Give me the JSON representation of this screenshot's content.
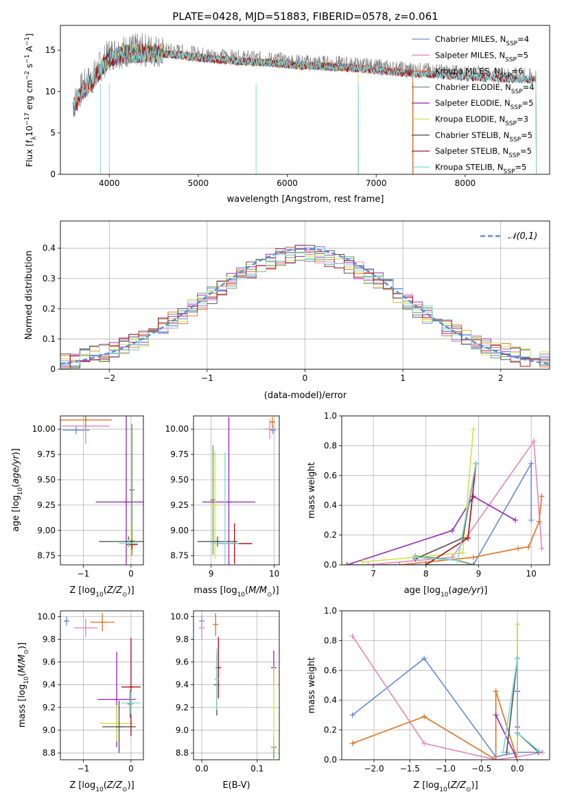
{
  "title": "PLATE=0428, MJD=51883, FIBERID=0578, z=0.061",
  "legend_spectrum": [
    {
      "label": "Chabrier MILES, N_SSP=4",
      "name": "Chabrier MILES, N",
      "sub": "SSP",
      "tail": "=4",
      "color": "#6a8fd8"
    },
    {
      "label": "Salpeter MILES, N_SSP=5",
      "name": "Salpeter MILES, N",
      "sub": "SSP",
      "tail": "=5",
      "color": "#e58bbd"
    },
    {
      "label": "Kroupa MILES, N_SSP=6",
      "name": "Kroupa MILES, N",
      "sub": "SSP",
      "tail": "=6",
      "color": "#e0772b"
    },
    {
      "label": "Chabrier ELODIE, N_SSP=4",
      "name": "Chabrier ELODIE, N",
      "sub": "SSP",
      "tail": "=4",
      "color": "#6b9a62"
    },
    {
      "label": "Salpeter ELODIE, N_SSP=5",
      "name": "Salpeter ELODIE, N",
      "sub": "SSP",
      "tail": "=5",
      "color": "#9c2fb4"
    },
    {
      "label": "Kroupa ELODIE, N_SSP=3",
      "name": "Kroupa ELODIE, N",
      "sub": "SSP",
      "tail": "=3",
      "color": "#d4e34b"
    },
    {
      "label": "Chabrier STELIB, N_SSP=5",
      "name": "Chabrier STELIB, N",
      "sub": "SSP",
      "tail": "=5",
      "color": "#555555"
    },
    {
      "label": "Salpeter STELIB, N_SSP=5",
      "name": "Salpeter STELIB, N",
      "sub": "SSP",
      "tail": "=5",
      "color": "#b0121b"
    },
    {
      "label": "Kroupa STELIB, N_SSP=5",
      "name": "Kroupa STELIB, N",
      "sub": "SSP",
      "tail": "=5",
      "color": "#7fd9d9"
    }
  ],
  "chart_data": [
    {
      "id": "spectrum",
      "type": "line",
      "xlabel": "wavelength [Angstrom, rest frame]",
      "ylabel": "Flux [f_λ 10^-17 erg cm^-2 s^-1 A^-1]",
      "xlim": [
        3450,
        8950
      ],
      "ylim": [
        0,
        18
      ],
      "xticks": [
        4000,
        5000,
        6000,
        7000,
        8000
      ],
      "yticks": [
        0,
        5,
        10,
        15
      ],
      "grid": false,
      "legend_position": "top-right",
      "data_series": {
        "name": "data",
        "color": "#808080",
        "x_range": [
          3590,
          8800
        ],
        "x": [
          3600,
          3700,
          3800,
          3900,
          4000,
          4100,
          4300,
          4500,
          4800,
          5000,
          5300,
          5600,
          5900,
          6200,
          6500,
          6800,
          7000,
          7200,
          7400,
          7600,
          8000,
          8400,
          8800
        ],
        "y": [
          8.5,
          10.5,
          11.5,
          13.0,
          14.5,
          14.8,
          15.0,
          15.0,
          14.8,
          14.5,
          14.2,
          14.0,
          13.8,
          13.5,
          13.4,
          13.2,
          13.0,
          12.8,
          12.6,
          12.5,
          12.2,
          12.0,
          11.8
        ]
      },
      "models": [
        {
          "name": "Chabrier MILES",
          "x_range": [
            3600,
            7410
          ],
          "color": "#6a8fd8"
        },
        {
          "name": "Salpeter MILES",
          "x_range": [
            3600,
            7410
          ],
          "color": "#e58bbd"
        },
        {
          "name": "Kroupa MILES",
          "x_range": [
            3600,
            7410
          ],
          "color": "#e0772b"
        },
        {
          "name": "Chabrier ELODIE",
          "x_range": [
            3900,
            6800
          ],
          "color": "#6b9a62"
        },
        {
          "name": "Salpeter ELODIE",
          "x_range": [
            3900,
            6800
          ],
          "color": "#9c2fb4"
        },
        {
          "name": "Kroupa ELODIE",
          "x_range": [
            3900,
            6800
          ],
          "color": "#d4e34b"
        },
        {
          "name": "Chabrier STELIB",
          "x_range": [
            3600,
            8800
          ],
          "color": "#555555"
        },
        {
          "name": "Salpeter STELIB",
          "x_range": [
            3600,
            8800
          ],
          "color": "#b0121b"
        },
        {
          "name": "Kroupa STELIB",
          "x_range": [
            3600,
            8800
          ],
          "color": "#7fd9d9"
        }
      ],
      "dropouts": [
        3900,
        4000,
        5650,
        6800,
        7420
      ]
    },
    {
      "id": "residuals",
      "type": "line",
      "xlabel": "(data-model)/error",
      "ylabel": "Normed distribution",
      "xlim": [
        -2.5,
        2.5
      ],
      "ylim": [
        0,
        0.49
      ],
      "xticks": [
        -2,
        -1,
        0,
        1,
        2
      ],
      "yticks": [
        0.0,
        0.1,
        0.2,
        0.3,
        0.4
      ],
      "grid": true,
      "legend": "𝒩(0,1)",
      "legend_position": "top-right",
      "gaussian": {
        "mean": 0,
        "sigma": 1,
        "color": "#5b8cd8",
        "dash": true
      },
      "histogram": {
        "bin_width": 0.1,
        "range": [
          -2.5,
          2.5
        ],
        "series_count": 9
      }
    },
    {
      "id": "age_vs_Z",
      "type": "scatter",
      "xlabel": "Z [log10(Z/Z⊙)]",
      "ylabel": "age [log10(age/yr)]",
      "xlim": [
        -1.48,
        0.26
      ],
      "ylim": [
        8.66,
        10.13
      ],
      "xticks": [
        -1,
        0
      ],
      "yticks": [
        8.75,
        9.0,
        9.25,
        9.5,
        9.75,
        10.0
      ],
      "grid": true,
      "points": [
        {
          "series": "Chabrier MILES",
          "x": -1.15,
          "y": 9.99,
          "xerr": 0.28,
          "yerr": 0.04,
          "color": "#6a8fd8"
        },
        {
          "series": "Salpeter MILES",
          "x": -0.95,
          "y": 10.03,
          "xerr": 0.5,
          "yerr": 0.18,
          "color": "#e58bbd"
        },
        {
          "series": "Kroupa MILES",
          "x": -0.95,
          "y": 10.09,
          "xerr": 0.55,
          "yerr": 0.08,
          "color": "#e0772b"
        },
        {
          "series": "Chabrier ELODIE",
          "x": 0.02,
          "y": 9.4,
          "xerr": 0.05,
          "yerr": 0.65,
          "color": "#6b9a62"
        },
        {
          "series": "Salpeter ELODIE",
          "x": -0.1,
          "y": 9.28,
          "xerr": 0.64,
          "yerr": 0.85,
          "color": "#9c2fb4"
        },
        {
          "series": "Kroupa ELODIE",
          "x": 0.0,
          "y": 8.9,
          "xerr": 0.08,
          "yerr": 0.15,
          "color": "#d4e34b"
        },
        {
          "series": "Chabrier STELIB",
          "x": -0.05,
          "y": 8.89,
          "xerr": 0.62,
          "yerr": 0.05,
          "color": "#555555"
        },
        {
          "series": "Salpeter STELIB",
          "x": 0.02,
          "y": 8.86,
          "xerr": 0.12,
          "yerr": 0.05,
          "color": "#b0121b"
        },
        {
          "series": "Kroupa STELIB",
          "x": -0.05,
          "y": 8.87,
          "xerr": 0.2,
          "yerr": 0.04,
          "color": "#7fd9d9"
        }
      ]
    },
    {
      "id": "age_vs_mass",
      "type": "scatter",
      "xlabel": "mass [log10(M/M⊙)]",
      "ylabel": "",
      "xlim": [
        8.72,
        10.08
      ],
      "ylim": [
        8.66,
        10.13
      ],
      "xticks": [
        9,
        10
      ],
      "yticks": [
        8.75,
        9.0,
        9.25,
        9.5,
        9.75,
        10.0
      ],
      "grid": true,
      "points": [
        {
          "series": "Chabrier MILES",
          "x": 9.98,
          "y": 9.99,
          "xerr": 0.03,
          "yerr": 0.04,
          "color": "#6a8fd8"
        },
        {
          "series": "Salpeter MILES",
          "x": 9.93,
          "y": 10.0,
          "xerr": 0.1,
          "yerr": 0.1,
          "color": "#e58bbd"
        },
        {
          "series": "Kroupa MILES",
          "x": 9.97,
          "y": 10.07,
          "xerr": 0.04,
          "yerr": 0.05,
          "color": "#e0772b"
        },
        {
          "series": "Chabrier ELODIE",
          "x": 9.03,
          "y": 9.3,
          "xerr": 0.02,
          "yerr": 0.54,
          "color": "#6b9a62"
        },
        {
          "series": "Salpeter ELODIE",
          "x": 9.28,
          "y": 9.28,
          "xerr": 0.42,
          "yerr": 0.84,
          "color": "#9c2fb4"
        },
        {
          "series": "Kroupa ELODIE",
          "x": 9.06,
          "y": 9.25,
          "xerr": 0.05,
          "yerr": 0.53,
          "color": "#d4e34b"
        },
        {
          "series": "Chabrier STELIB",
          "x": 9.1,
          "y": 8.89,
          "xerr": 0.32,
          "yerr": 0.05,
          "color": "#555555"
        },
        {
          "series": "Salpeter STELIB",
          "x": 9.37,
          "y": 8.87,
          "xerr": 0.28,
          "yerr": 0.2,
          "color": "#b0121b"
        },
        {
          "series": "Kroupa STELIB",
          "x": 9.22,
          "y": 8.87,
          "xerr": 0.22,
          "yerr": 0.9,
          "color": "#7fd9d9"
        }
      ]
    },
    {
      "id": "weight_vs_age",
      "type": "line",
      "xlabel": "age  [log10(age/yr)]",
      "ylabel": "mass weight",
      "xlim": [
        6.4,
        10.35
      ],
      "ylim": [
        0,
        1.0
      ],
      "xticks": [
        7,
        8,
        9,
        10
      ],
      "yticks": [
        0.0,
        0.2,
        0.4,
        0.6,
        0.8,
        1.0
      ],
      "grid": true,
      "series": [
        {
          "name": "Chabrier MILES",
          "color": "#6a8fd8",
          "x": [
            6.6,
            8.9,
            10.0,
            10.0
          ],
          "y": [
            0.0,
            0.0,
            0.68,
            0.3
          ]
        },
        {
          "name": "Salpeter MILES",
          "color": "#e58bbd",
          "x": [
            6.9,
            8.5,
            10.05,
            10.2
          ],
          "y": [
            0.0,
            0.05,
            0.83,
            0.11
          ]
        },
        {
          "name": "Kroupa MILES",
          "color": "#e0772b",
          "x": [
            7.5,
            8.9,
            9.75,
            9.95,
            10.15,
            10.2
          ],
          "y": [
            0.0,
            0.05,
            0.11,
            0.12,
            0.29,
            0.46
          ]
        },
        {
          "name": "Chabrier ELODIE",
          "color": "#6b9a62",
          "x": [
            7.8,
            8.6,
            8.9
          ],
          "y": [
            0.06,
            0.03,
            0.0
          ]
        },
        {
          "name": "Salpeter ELODIE",
          "color": "#9c2fb4",
          "x": [
            6.5,
            8.5,
            8.9,
            9.7
          ],
          "y": [
            0.0,
            0.23,
            0.46,
            0.3
          ]
        },
        {
          "name": "Kroupa ELODIE",
          "color": "#d4e34b",
          "x": [
            6.8,
            8.7,
            8.9
          ],
          "y": [
            0.02,
            0.08,
            0.91
          ]
        },
        {
          "name": "Chabrier STELIB",
          "color": "#555555",
          "x": [
            7.8,
            8.7,
            8.95
          ],
          "y": [
            0.04,
            0.18,
            0.68
          ]
        },
        {
          "name": "Salpeter STELIB",
          "color": "#b0121b",
          "x": [
            8.0,
            8.8,
            8.95
          ],
          "y": [
            0.0,
            0.18,
            0.68
          ]
        },
        {
          "name": "Kroupa STELIB",
          "color": "#7fd9d9",
          "x": [
            7.8,
            8.6,
            8.95
          ],
          "y": [
            0.05,
            0.03,
            0.68
          ]
        }
      ]
    },
    {
      "id": "mass_vs_Z",
      "type": "scatter",
      "xlabel": "Z [log10(Z/Z⊙)]",
      "ylabel": "mass [log10(M/M⊙)]",
      "xlim": [
        -1.48,
        0.26
      ],
      "ylim": [
        8.74,
        10.05
      ],
      "xticks": [
        -1,
        0
      ],
      "yticks": [
        8.8,
        9.0,
        9.2,
        9.4,
        9.6,
        9.8,
        10.0
      ],
      "grid": true,
      "points": [
        {
          "series": "Chabrier MILES",
          "x": -1.35,
          "y": 9.96,
          "xerr": 0.05,
          "yerr": 0.04,
          "color": "#6a8fd8"
        },
        {
          "series": "Salpeter MILES",
          "x": -0.95,
          "y": 9.9,
          "xerr": 0.25,
          "yerr": 0.08,
          "color": "#e58bbd"
        },
        {
          "series": "Kroupa MILES",
          "x": -0.6,
          "y": 9.95,
          "xerr": 0.25,
          "yerr": 0.08,
          "color": "#e0772b"
        },
        {
          "series": "Chabrier ELODIE",
          "x": -0.02,
          "y": 9.23,
          "xerr": 0.04,
          "yerr": 0.12,
          "color": "#6b9a62"
        },
        {
          "series": "Salpeter ELODIE",
          "x": -0.3,
          "y": 9.27,
          "xerr": 0.4,
          "yerr": 0.42,
          "color": "#9c2fb4"
        },
        {
          "series": "Kroupa ELODIE",
          "x": -0.3,
          "y": 9.06,
          "xerr": 0.35,
          "yerr": 0.16,
          "color": "#d4e34b"
        },
        {
          "series": "Chabrier STELIB",
          "x": -0.25,
          "y": 9.03,
          "xerr": 0.35,
          "yerr": 0.23,
          "color": "#555555"
        },
        {
          "series": "Salpeter STELIB",
          "x": 0.0,
          "y": 9.38,
          "xerr": 0.2,
          "yerr": 0.43,
          "color": "#b0121b"
        },
        {
          "series": "Kroupa STELIB",
          "x": 0.0,
          "y": 9.24,
          "xerr": 0.2,
          "yerr": 0.1,
          "color": "#7fd9d9"
        }
      ]
    },
    {
      "id": "mass_vs_EBV",
      "type": "scatter",
      "xlabel": "E(B-V)",
      "ylabel": "",
      "xlim": [
        -0.015,
        0.14
      ],
      "ylim": [
        8.74,
        10.05
      ],
      "xticks": [
        0.0,
        0.1
      ],
      "yticks": [
        8.8,
        9.0,
        9.2,
        9.4,
        9.6,
        9.8,
        10.0
      ],
      "grid": true,
      "points": [
        {
          "series": "Chabrier MILES",
          "x": 0.0,
          "y": 9.96,
          "xerr": 0,
          "yerr": 0.05,
          "color": "#6a8fd8"
        },
        {
          "series": "Salpeter MILES",
          "x": 0.0,
          "y": 9.9,
          "xerr": 0,
          "yerr": 0.1,
          "color": "#e58bbd"
        },
        {
          "series": "Kroupa MILES",
          "x": 0.025,
          "y": 9.93,
          "xerr": 0,
          "yerr": 0.1,
          "color": "#e0772b"
        },
        {
          "series": "Chabrier ELODIE",
          "x": 0.13,
          "y": 8.85,
          "xerr": 0,
          "yerr": 0.1,
          "color": "#6b9a62"
        },
        {
          "series": "Salpeter ELODIE",
          "x": 0.13,
          "y": 9.55,
          "xerr": 0,
          "yerr": 0.15,
          "color": "#9c2fb4"
        },
        {
          "series": "Kroupa ELODIE",
          "x": 0.13,
          "y": 9.2,
          "xerr": 0,
          "yerr": 0.36,
          "color": "#d4e34b"
        },
        {
          "series": "Chabrier STELIB",
          "x": 0.027,
          "y": 9.4,
          "xerr": 0,
          "yerr": 0.27,
          "color": "#555555"
        },
        {
          "series": "Salpeter STELIB",
          "x": 0.03,
          "y": 9.55,
          "xerr": 0,
          "yerr": 0.27,
          "color": "#b0121b"
        },
        {
          "series": "Kroupa STELIB",
          "x": 0.027,
          "y": 9.45,
          "xerr": 0,
          "yerr": 0.27,
          "color": "#7fd9d9"
        }
      ]
    },
    {
      "id": "weight_vs_Z",
      "type": "line",
      "xlabel": "Z [log10(Z/Z⊙)]",
      "ylabel": "mass weight",
      "xlim": [
        -2.45,
        0.45
      ],
      "ylim": [
        0,
        1.0
      ],
      "xticks": [
        -2.0,
        -1.5,
        -1.0,
        -0.5,
        0.0
      ],
      "yticks": [
        0.0,
        0.2,
        0.4,
        0.6,
        0.8,
        1.0
      ],
      "grid": true,
      "series": [
        {
          "name": "Chabrier MILES",
          "color": "#6a8fd8",
          "x": [
            -2.3,
            -1.3,
            -0.3,
            0.0,
            0.3
          ],
          "y": [
            0.3,
            0.68,
            0.02,
            0.05,
            0.05
          ]
        },
        {
          "name": "Salpeter MILES",
          "color": "#e58bbd",
          "x": [
            -2.3,
            -1.3,
            -0.3,
            0.0,
            0.35
          ],
          "y": [
            0.83,
            0.11,
            0.0,
            0.02,
            0.05
          ]
        },
        {
          "name": "Kroupa MILES",
          "color": "#e0772b",
          "x": [
            -2.3,
            -1.3,
            -0.3,
            -0.3,
            0.0
          ],
          "y": [
            0.11,
            0.29,
            0.0,
            0.46,
            0.0
          ]
        },
        {
          "name": "Chabrier ELODIE",
          "color": "#6b9a62",
          "x": [
            0.0,
            0.0
          ],
          "y": [
            0.0,
            0.91
          ]
        },
        {
          "name": "Salpeter ELODIE",
          "color": "#9c2fb4",
          "x": [
            -0.3,
            0.0,
            0.0,
            0.0
          ],
          "y": [
            0.3,
            0.0,
            0.22,
            0.46
          ]
        },
        {
          "name": "Kroupa ELODIE",
          "color": "#d4e34b",
          "x": [
            0.0,
            0.0
          ],
          "y": [
            0.0,
            0.91
          ]
        },
        {
          "name": "Chabrier STELIB",
          "color": "#555555",
          "x": [
            -0.15,
            0.0,
            0.0,
            0.3
          ],
          "y": [
            0.05,
            0.68,
            0.18,
            0.05
          ]
        },
        {
          "name": "Salpeter STELIB",
          "color": "#b0121b",
          "x": [
            0.0,
            0.0
          ],
          "y": [
            0.18,
            0.68
          ]
        },
        {
          "name": "Kroupa STELIB",
          "color": "#7fd9d9",
          "x": [
            -0.2,
            0.0,
            0.0,
            0.3
          ],
          "y": [
            0.05,
            0.68,
            0.18,
            0.06
          ]
        }
      ]
    }
  ]
}
